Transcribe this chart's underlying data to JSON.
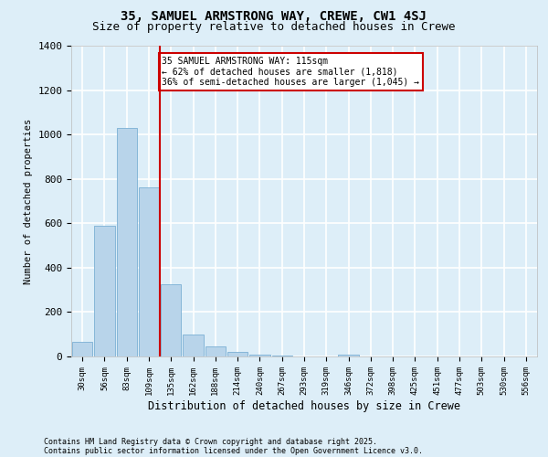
{
  "title1": "35, SAMUEL ARMSTRONG WAY, CREWE, CW1 4SJ",
  "title2": "Size of property relative to detached houses in Crewe",
  "xlabel": "Distribution of detached houses by size in Crewe",
  "ylabel": "Number of detached properties",
  "categories": [
    "30sqm",
    "56sqm",
    "83sqm",
    "109sqm",
    "135sqm",
    "162sqm",
    "188sqm",
    "214sqm",
    "240sqm",
    "267sqm",
    "293sqm",
    "319sqm",
    "346sqm",
    "372sqm",
    "398sqm",
    "425sqm",
    "451sqm",
    "477sqm",
    "503sqm",
    "530sqm",
    "556sqm"
  ],
  "values": [
    65,
    590,
    1030,
    760,
    325,
    100,
    45,
    20,
    10,
    5,
    0,
    0,
    10,
    0,
    0,
    0,
    0,
    0,
    0,
    0,
    0
  ],
  "bar_color": "#b8d4ea",
  "bar_edge_color": "#7aafd4",
  "red_line_index": 3,
  "annotation_text": "35 SAMUEL ARMSTRONG WAY: 115sqm\n← 62% of detached houses are smaller (1,818)\n36% of semi-detached houses are larger (1,045) →",
  "annotation_box_color": "#ffffff",
  "annotation_box_edge": "#cc0000",
  "red_line_color": "#cc0000",
  "ylim": [
    0,
    1400
  ],
  "yticks": [
    0,
    200,
    400,
    600,
    800,
    1000,
    1200,
    1400
  ],
  "footer1": "Contains HM Land Registry data © Crown copyright and database right 2025.",
  "footer2": "Contains public sector information licensed under the Open Government Licence v3.0.",
  "bg_color": "#ddeef8",
  "grid_color": "#ffffff",
  "title1_fontsize": 10,
  "title2_fontsize": 9
}
